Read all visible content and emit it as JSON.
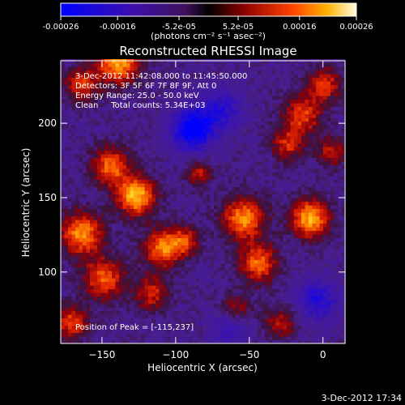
{
  "colorbar": {
    "tick_labels": [
      "-0.00026",
      "-0.00016",
      "-5.2e-05",
      "5.2e-05",
      "0.00016",
      "0.00026"
    ],
    "tick_values": [
      -0.00026,
      -0.00016,
      -5.2e-05,
      5.2e-05,
      0.00016,
      0.00026
    ],
    "range": [
      -0.00026,
      0.00026
    ],
    "unit_label": "(photons cm⁻² s⁻¹ asec⁻²)"
  },
  "chart_data": {
    "type": "heatmap",
    "title": "Reconstructed RHESSI Image",
    "xlabel": "Heliocentric X (arcsec)",
    "ylabel": "Heliocentric Y (arcsec)",
    "xlim": [
      -178,
      15
    ],
    "ylim": [
      52,
      242
    ],
    "x_ticks": [
      -150,
      -100,
      -50,
      0
    ],
    "x_tick_labels": [
      "−150",
      "−100",
      "−50",
      "0"
    ],
    "y_ticks": [
      100,
      150,
      200
    ],
    "y_tick_labels": [
      "100",
      "150",
      "200"
    ],
    "info_lines": [
      "3-Dec-2012 11:42:08.000 to 11:45:50.000",
      "Detectors: 3F 5F 6F 7F 8F 9F, Att 0",
      "Energy Range: 25.0 - 50.0 keV",
      "Clean     Total counts: 5.34E+03"
    ],
    "peak_label": "Position of Peak = [-115,237]",
    "peak": {
      "x": -115,
      "y": 237
    },
    "sources": [
      {
        "x": -128,
        "y": 150,
        "amp": 1.0,
        "sigma": 9
      },
      {
        "x": -145,
        "y": 170,
        "amp": 0.75,
        "sigma": 9
      },
      {
        "x": -165,
        "y": 125,
        "amp": 0.85,
        "sigma": 10
      },
      {
        "x": -150,
        "y": 95,
        "amp": 0.7,
        "sigma": 10
      },
      {
        "x": -140,
        "y": 240,
        "amp": 0.9,
        "sigma": 10
      },
      {
        "x": -165,
        "y": 225,
        "amp": 0.6,
        "sigma": 8
      },
      {
        "x": -172,
        "y": 65,
        "amp": 0.65,
        "sigma": 8
      },
      {
        "x": -110,
        "y": 115,
        "amp": 0.8,
        "sigma": 9
      },
      {
        "x": -118,
        "y": 85,
        "amp": 0.55,
        "sigma": 8
      },
      {
        "x": -95,
        "y": 120,
        "amp": 0.55,
        "sigma": 7
      },
      {
        "x": -55,
        "y": 135,
        "amp": 0.85,
        "sigma": 10
      },
      {
        "x": -45,
        "y": 105,
        "amp": 0.75,
        "sigma": 9
      },
      {
        "x": -10,
        "y": 135,
        "amp": 0.95,
        "sigma": 9
      },
      {
        "x": -25,
        "y": 185,
        "amp": 0.55,
        "sigma": 8
      },
      {
        "x": -15,
        "y": 205,
        "amp": 0.65,
        "sigma": 9
      },
      {
        "x": 0,
        "y": 225,
        "amp": 0.6,
        "sigma": 8
      },
      {
        "x": 5,
        "y": 180,
        "amp": 0.5,
        "sigma": 7
      },
      {
        "x": -30,
        "y": 65,
        "amp": 0.45,
        "sigma": 8
      },
      {
        "x": -85,
        "y": 165,
        "amp": 0.5,
        "sigma": 6
      },
      {
        "x": -60,
        "y": 75,
        "amp": 0.4,
        "sigma": 7
      },
      {
        "x": -90,
        "y": 195,
        "amp": -0.9,
        "sigma": 10
      },
      {
        "x": -70,
        "y": 208,
        "amp": -0.5,
        "sigma": 10
      },
      {
        "x": -5,
        "y": 80,
        "amp": -0.55,
        "sigma": 10
      },
      {
        "x": -65,
        "y": 60,
        "amp": -0.35,
        "sigma": 9
      }
    ]
  },
  "footer": {
    "timestamp": "3-Dec-2012 17:34"
  }
}
